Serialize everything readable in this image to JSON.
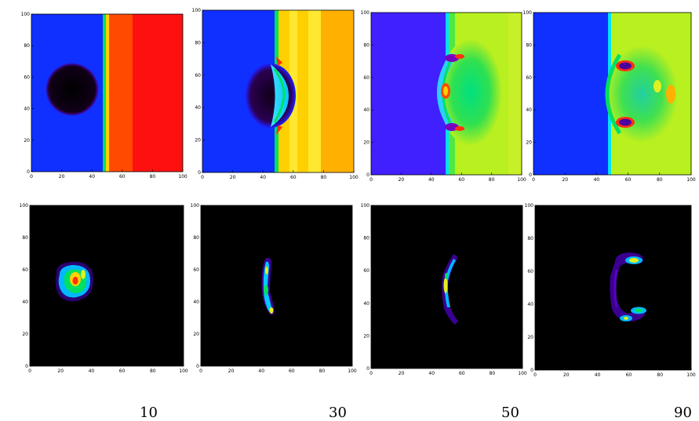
{
  "figure": {
    "ticks": [
      "0",
      "20",
      "40",
      "60",
      "80",
      "100"
    ],
    "top_row": [
      {
        "id": "t10",
        "shock_x": 47.5
      },
      {
        "id": "t30",
        "shock_x": 50
      },
      {
        "id": "t50",
        "shock_x": 50
      },
      {
        "id": "t90",
        "shock_x": 49
      }
    ],
    "bottom_row": [
      {
        "id": "b10"
      },
      {
        "id": "b30"
      },
      {
        "id": "b50"
      },
      {
        "id": "b90"
      }
    ],
    "captions": [
      "10",
      "30",
      "50",
      "90"
    ],
    "colors": {
      "blue": "#1030ff",
      "red": "#ff1010",
      "orange": "#ff4a00",
      "black": "#000000",
      "yellow": "#ffd000",
      "amber": "#ffb000",
      "green": "#00e060",
      "lime": "#b8f020",
      "cyan": "#00e0ff",
      "purple": "#4a00a0"
    }
  }
}
